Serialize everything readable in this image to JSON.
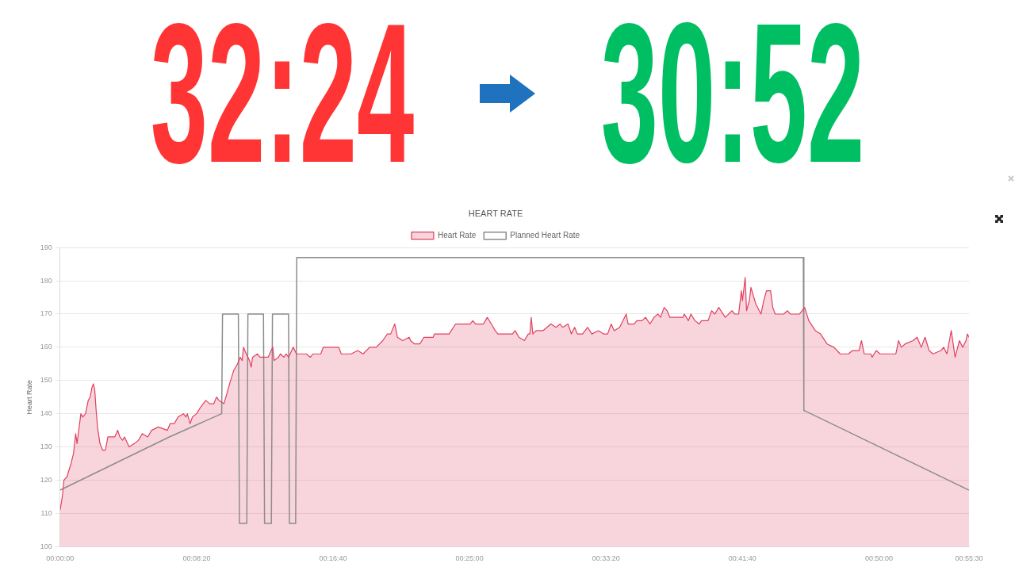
{
  "chart_data": {
    "type": "line",
    "title": "HEART RATE",
    "ylabel": "Heart Rate",
    "legend": "top",
    "grid": "y",
    "marker": "none",
    "xlim": [
      0,
      3330
    ],
    "xticks": [
      {
        "value": 0,
        "label": "00:00:00"
      },
      {
        "value": 500,
        "label": "00:08:20"
      },
      {
        "value": 1000,
        "label": "00:16:40"
      },
      {
        "value": 1500,
        "label": "00:25:00"
      },
      {
        "value": 2000,
        "label": "00:33:20"
      },
      {
        "value": 2500,
        "label": "00:41:40"
      },
      {
        "value": 3000,
        "label": "00:50:00"
      },
      {
        "value": 3330,
        "label": "00:55:30"
      }
    ],
    "ylim": [
      100,
      190
    ],
    "yticks": [
      100,
      110,
      120,
      130,
      140,
      150,
      160,
      170,
      180,
      190
    ],
    "annotations": [
      "32:24",
      "30:52"
    ],
    "series": [
      {
        "name": "Heart Rate",
        "type": "area",
        "color": "#e0405f",
        "x": [
          0,
          8,
          14,
          25,
          40,
          49,
          57,
          62,
          76,
          83,
          93,
          103,
          110,
          117,
          122,
          127,
          132,
          137,
          146,
          156,
          166,
          175,
          200,
          211,
          219,
          229,
          236,
          253,
          272,
          287,
          301,
          321,
          335,
          360,
          393,
          403,
          418,
          432,
          452,
          461,
          466,
          476,
          485,
          500,
          515,
          534,
          548,
          563,
          573,
          582,
          600,
          611,
          621,
          636,
          650,
          660,
          667,
          672,
          682,
          694,
          700,
          705,
          723,
          732,
          762,
          779,
          784,
          800,
          807,
          820,
          828,
          837,
          854,
          866,
          902,
          917,
          926,
          955,
          964,
          989,
          1021,
          1030,
          1066,
          1090,
          1110,
          1134,
          1158,
          1182,
          1199,
          1211,
          1226,
          1236,
          1255,
          1279,
          1284,
          1299,
          1318,
          1333,
          1367,
          1371,
          1425,
          1449,
          1478,
          1502,
          1512,
          1522,
          1551,
          1565,
          1580,
          1594,
          1604,
          1657,
          1667,
          1681,
          1701,
          1715,
          1721,
          1726,
          1732,
          1744,
          1769,
          1798,
          1817,
          1832,
          1841,
          1861,
          1873,
          1885,
          1895,
          1914,
          1933,
          1948,
          1972,
          1991,
          2006,
          2019,
          2030,
          2050,
          2074,
          2081,
          2103,
          2113,
          2132,
          2145,
          2161,
          2176,
          2190,
          2200,
          2213,
          2224,
          2234,
          2282,
          2287,
          2302,
          2311,
          2326,
          2341,
          2350,
          2374,
          2387,
          2399,
          2413,
          2437,
          2462,
          2471,
          2486,
          2496,
          2500,
          2510,
          2515,
          2525,
          2531,
          2549,
          2568,
          2578,
          2588,
          2603,
          2611,
          2620,
          2651,
          2665,
          2675,
          2709,
          2728,
          2743,
          2767,
          2786,
          2810,
          2835,
          2858,
          2888,
          2903,
          2927,
          2936,
          2946,
          2970,
          2975,
          2990,
          3004,
          3062,
          3072,
          3082,
          3096,
          3125,
          3140,
          3155,
          3169,
          3184,
          3198,
          3227,
          3237,
          3249,
          3265,
          3279,
          3295,
          3307,
          3319,
          3324,
          3330
        ],
        "values": [
          111,
          115,
          120,
          121,
          125,
          128,
          134,
          131,
          140,
          139,
          140,
          144,
          145,
          148,
          149,
          147,
          141,
          136,
          131,
          129,
          129,
          133,
          133,
          135,
          133,
          132,
          133,
          130,
          131,
          132,
          134,
          133,
          135,
          136,
          135,
          137,
          137,
          139,
          140,
          139,
          140,
          137,
          139,
          140,
          142,
          144,
          143,
          143,
          145,
          144,
          143,
          146,
          149,
          153,
          155,
          157,
          156,
          160,
          158,
          156,
          154,
          157,
          158,
          157,
          157,
          160,
          156,
          157,
          158,
          157,
          158,
          157,
          160,
          158,
          158,
          157,
          158,
          158,
          160,
          160,
          160,
          158,
          158,
          159,
          158,
          160,
          160,
          162,
          164,
          164,
          167,
          163,
          162,
          163,
          162,
          161,
          161,
          163,
          163,
          164,
          164,
          167,
          167,
          167,
          168,
          167,
          167,
          169,
          167,
          165,
          164,
          164,
          165,
          163,
          162,
          164,
          164,
          169,
          164,
          165,
          165,
          167,
          166,
          167,
          166,
          167,
          164,
          166,
          164,
          164,
          166,
          164,
          165,
          164,
          164,
          167,
          165,
          166,
          170,
          167,
          167,
          168,
          168,
          169,
          167,
          169,
          170,
          169,
          172,
          171,
          169,
          169,
          170,
          168,
          170,
          168,
          167,
          168,
          168,
          171,
          170,
          172,
          169,
          171,
          170,
          170,
          177,
          174,
          181,
          171,
          174,
          178,
          173,
          170,
          174,
          177,
          177,
          172,
          170,
          170,
          171,
          170,
          170,
          172,
          168,
          165,
          164,
          161,
          160,
          158,
          158,
          159,
          159,
          162,
          158,
          158,
          157,
          159,
          158,
          158,
          162,
          160,
          161,
          162,
          163,
          160,
          163,
          159,
          158,
          159,
          160,
          158,
          165,
          157,
          162,
          160,
          162,
          164,
          163
        ]
      },
      {
        "name": "Planned Heart Rate",
        "type": "line",
        "color": "#8c8c8c",
        "x": [
          0,
          200,
          400,
          592,
          595,
          653,
          657,
          684,
          688,
          745,
          749,
          774,
          778,
          837,
          840,
          863,
          867,
          2723,
          2725,
          3330
        ],
        "values": [
          117,
          125,
          133,
          140,
          170,
          170,
          107,
          107,
          170,
          170,
          107,
          107,
          170,
          170,
          107,
          107,
          187,
          187,
          141,
          117
        ]
      }
    ]
  }
}
